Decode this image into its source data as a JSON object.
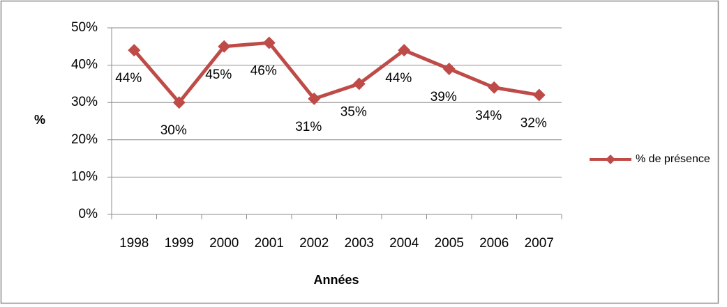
{
  "chart_data": {
    "type": "line",
    "x_label": "Années",
    "y_label": "%",
    "categories": [
      "1998",
      "1999",
      "2000",
      "2001",
      "2002",
      "2003",
      "2004",
      "2005",
      "2006",
      "2007"
    ],
    "series": [
      {
        "name": "% de présence",
        "color": "#be4b48",
        "values": [
          44,
          30,
          45,
          46,
          31,
          35,
          44,
          39,
          34,
          32
        ],
        "value_labels": [
          "44%",
          "30%",
          "45%",
          "46%",
          "31%",
          "35%",
          "44%",
          "39%",
          "34%",
          "32%"
        ]
      }
    ],
    "ylim": [
      0,
      50
    ],
    "yticks": [
      {
        "value": 0,
        "label": "0%"
      },
      {
        "value": 10,
        "label": "10%"
      },
      {
        "value": 20,
        "label": "20%"
      },
      {
        "value": 30,
        "label": "30%"
      },
      {
        "value": 40,
        "label": "40%"
      },
      {
        "value": 50,
        "label": "50%"
      }
    ],
    "grid": true,
    "legend": "right"
  }
}
